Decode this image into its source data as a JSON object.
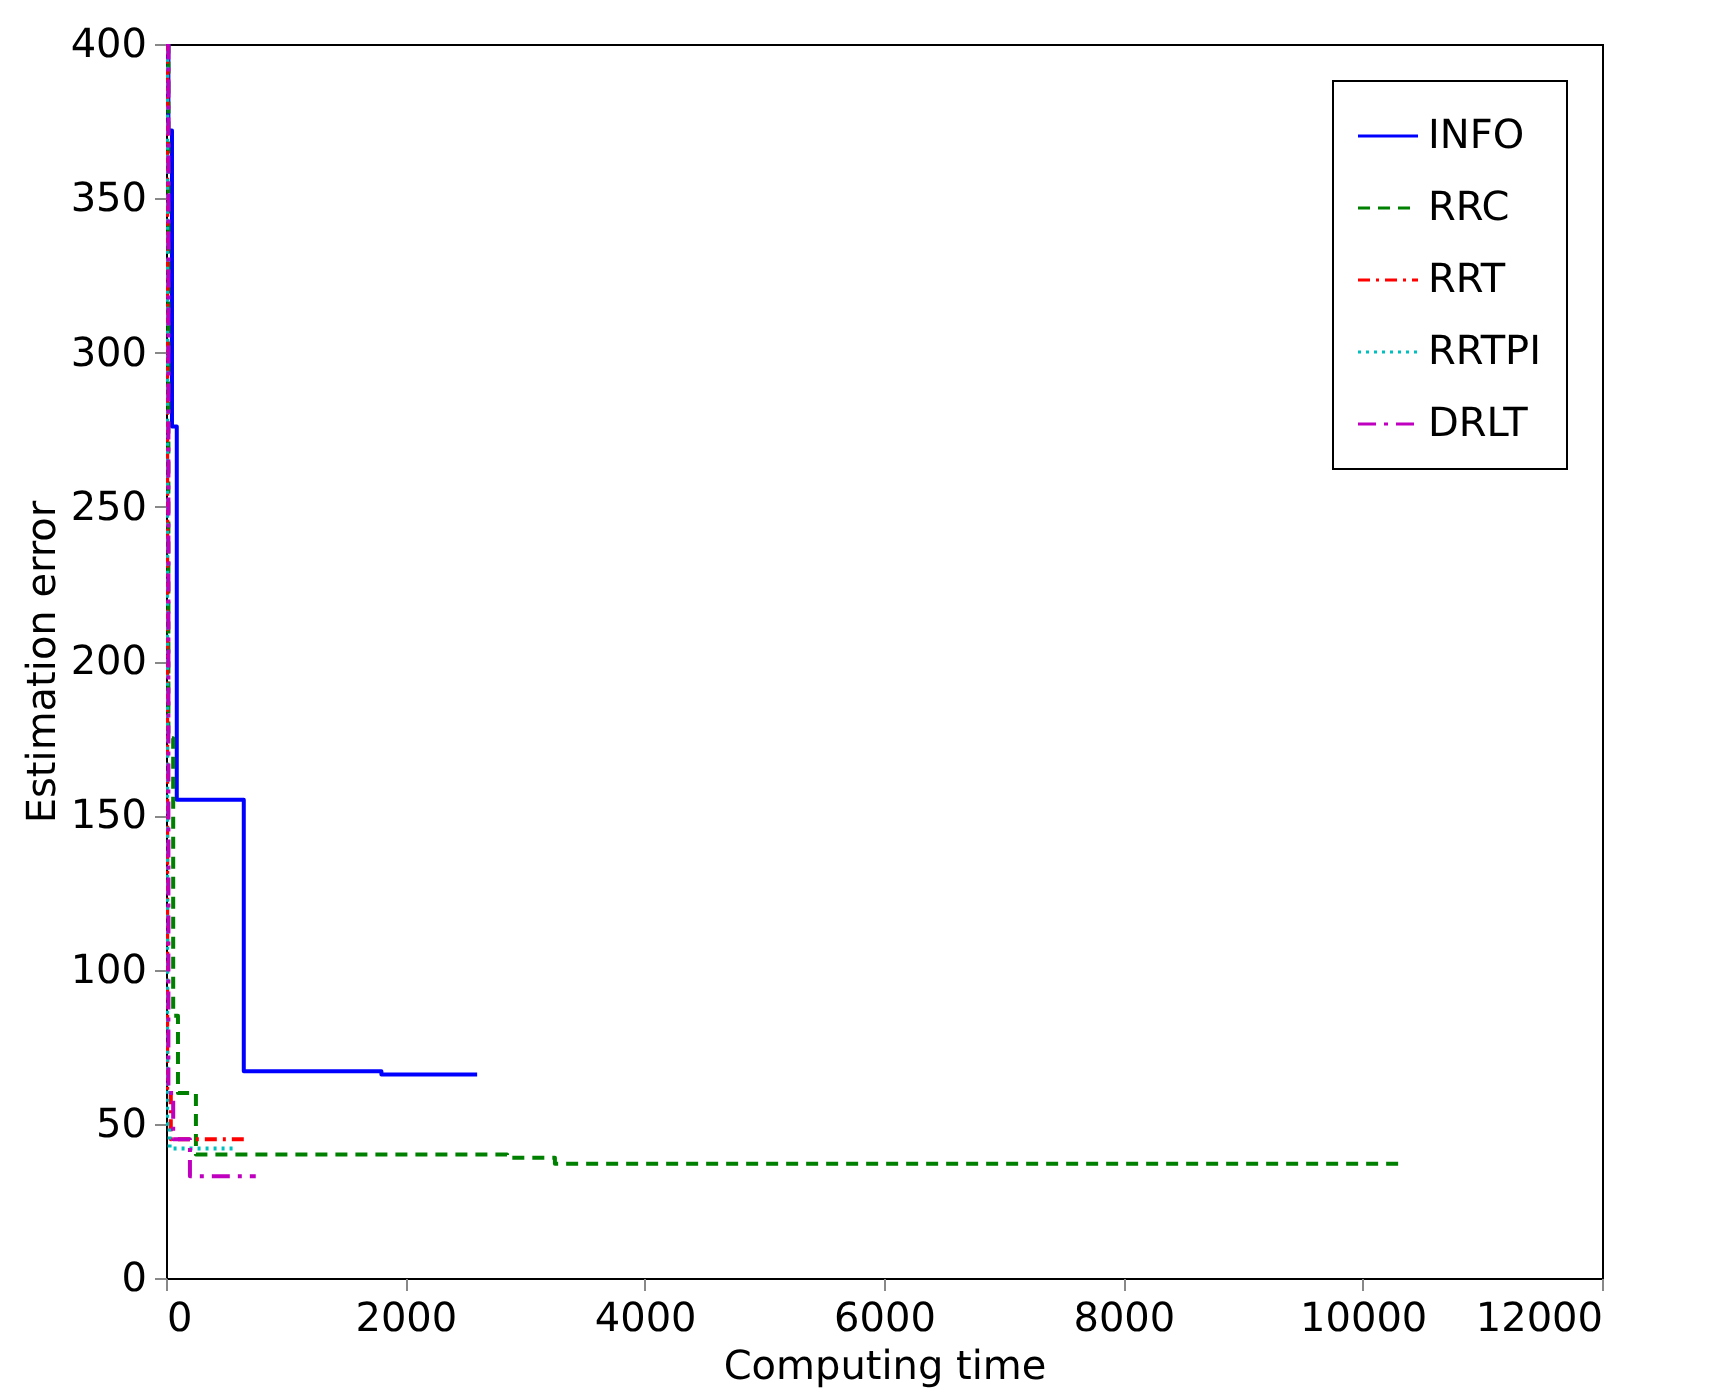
{
  "chart_data": {
    "type": "step",
    "xlabel": "Computing time",
    "ylabel": "Estimation error",
    "xlim": [
      0,
      12000
    ],
    "ylim": [
      0,
      400
    ],
    "xticks": [
      0,
      2000,
      4000,
      6000,
      8000,
      10000,
      12000
    ],
    "yticks": [
      0,
      50,
      100,
      150,
      200,
      250,
      300,
      350,
      400
    ],
    "legend": "top right",
    "grid": false,
    "marker": "none",
    "series": [
      {
        "name": "INFO",
        "color": "#0000ff",
        "line_style": "solid",
        "x": [
          0,
          20,
          50,
          90,
          650,
          1800,
          2600
        ],
        "values": [
          400,
          372,
          276,
          155,
          67,
          66,
          66
        ]
      },
      {
        "name": "RRC",
        "color": "#008000",
        "line_style": "dashed",
        "x": [
          0,
          20,
          60,
          100,
          250,
          2850,
          3250,
          10350
        ],
        "values": [
          400,
          175,
          85,
          60,
          40,
          39,
          37,
          37
        ]
      },
      {
        "name": "RRT",
        "color": "#ff0000",
        "line_style": "dashdot",
        "x": [
          0,
          10,
          40,
          650
        ],
        "values": [
          400,
          60,
          45,
          45
        ]
      },
      {
        "name": "RRTPI",
        "color": "#00bfbf",
        "line_style": "dotted",
        "x": [
          0,
          10,
          30,
          580
        ],
        "values": [
          400,
          50,
          42,
          42
        ]
      },
      {
        "name": "DRLT",
        "color": "#bf00bf",
        "line_style": "longdash",
        "x": [
          0,
          20,
          60,
          200,
          750
        ],
        "values": [
          400,
          60,
          45,
          33,
          33
        ]
      }
    ]
  }
}
